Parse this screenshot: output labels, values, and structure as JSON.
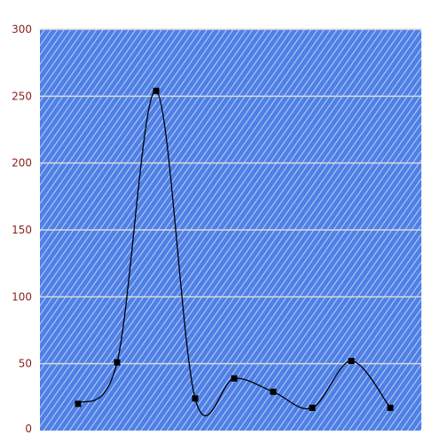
{
  "chart_data": {
    "type": "line",
    "title": "",
    "xlabel": "",
    "ylabel": "",
    "x": [
      1,
      2,
      3,
      4,
      5,
      6,
      7,
      8,
      9
    ],
    "series": [
      {
        "values": [
          20,
          51,
          254,
          24,
          39,
          29,
          17,
          52,
          17
        ]
      }
    ],
    "ylim": [
      0,
      300
    ],
    "yticks": [
      0,
      50,
      100,
      150,
      200,
      250,
      300
    ],
    "ytick_labels": [
      "0",
      "50",
      "100",
      "150",
      "200",
      "250",
      "300"
    ],
    "grid": true,
    "legend": "none",
    "line_style": "smooth",
    "marker": "square",
    "colors": {
      "plot_background": "#4f80e6",
      "hatch": "#d6e2fb",
      "gridline": "#d9d9d9",
      "line": "#000000",
      "marker": "#000000",
      "tick_label": "#8a1f1f"
    }
  }
}
